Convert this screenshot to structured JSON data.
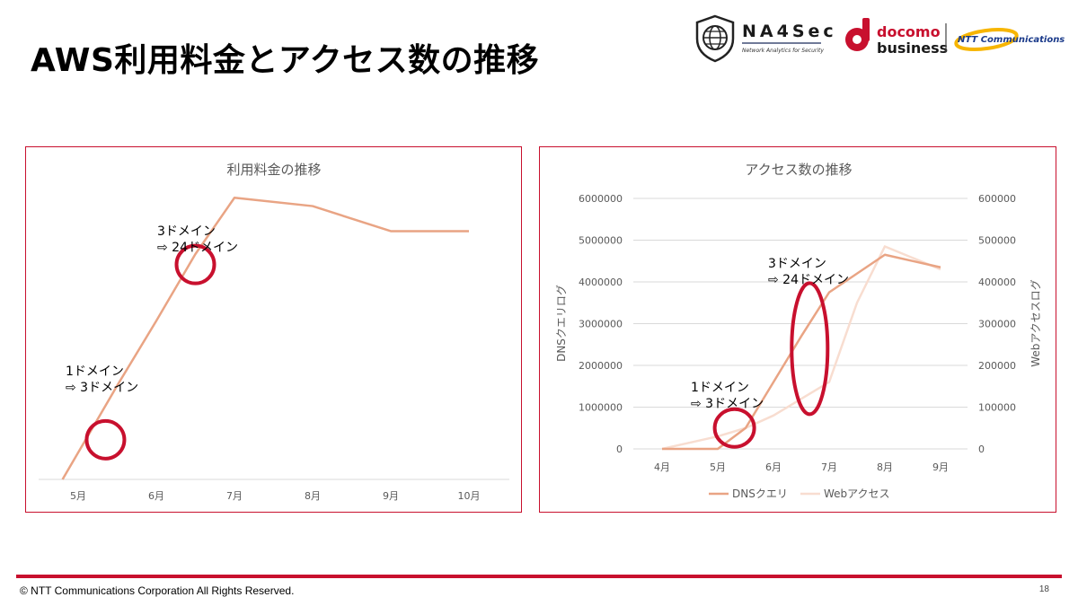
{
  "slide": {
    "title": "AWS利用料金とアクセス数の推移",
    "footer": "© NTT Communications Corporation All Rights Reserved.",
    "page_number": "18"
  },
  "logos": {
    "na4sec_name": "NA4Sec",
    "na4sec_tagline": "Network Analytics for Security",
    "docomo_line1": "docomo",
    "docomo_line2": "business",
    "ntt_name": "NTT Communications"
  },
  "colors": {
    "accent": "#c8102e",
    "series_dns": "#e9a484",
    "series_web": "#f8ddd0",
    "grid": "#d9d9d9",
    "axis_text": "#595959"
  },
  "chart_data": [
    {
      "type": "line",
      "title": "利用料金の推移",
      "categories": [
        "5月",
        "6月",
        "7月",
        "8月",
        "9月",
        "10月"
      ],
      "x": [
        4.8,
        5.5,
        6.0,
        6.5,
        7.0,
        8.0,
        9.0,
        10.0
      ],
      "values": [
        0.0,
        0.45,
        0.76,
        1.08,
        1.35,
        1.31,
        1.19,
        1.19
      ],
      "ylim": [
        0,
        1.42
      ],
      "grid": false,
      "annotations": [
        {
          "line1": "1ドメイン",
          "line2": "⇨ 3ドメイン",
          "circle_x": 5.35,
          "circle_y": 0.19
        },
        {
          "line1": "3ドメイン",
          "line2": "⇨ 24ドメイン",
          "circle_x": 6.5,
          "circle_y": 1.03
        }
      ]
    },
    {
      "type": "line",
      "title": "アクセス数の推移",
      "categories": [
        "4月",
        "5月",
        "6月",
        "7月",
        "8月",
        "9月"
      ],
      "ylabel": "DNSクエリログ",
      "y2label": "Webアクセスログ",
      "ylim": [
        0,
        6000000
      ],
      "y2lim": [
        0,
        600000
      ],
      "yticks": [
        "0",
        "1000000",
        "2000000",
        "3000000",
        "4000000",
        "5000000",
        "6000000"
      ],
      "y2ticks": [
        "0",
        "100000",
        "200000",
        "300000",
        "400000",
        "500000",
        "600000"
      ],
      "grid": true,
      "legend": "bottom",
      "series": [
        {
          "name": "DNSクエリ",
          "axis": "left",
          "x": [
            4,
            5,
            5.5,
            6,
            6.5,
            7,
            8,
            9
          ],
          "values": [
            0,
            0,
            500000,
            1600000,
            2700000,
            3750000,
            4650000,
            4350000
          ]
        },
        {
          "name": "Webアクセス",
          "axis": "right",
          "x": [
            4,
            5,
            5.5,
            6,
            6.5,
            7,
            7.5,
            8,
            9
          ],
          "values": [
            0,
            30000,
            50000,
            80000,
            120000,
            160000,
            350000,
            485000,
            430000
          ]
        }
      ],
      "annotations": [
        {
          "line1": "1ドメイン",
          "line2": "⇨ 3ドメイン",
          "circle_x": 5.3,
          "circle_y": 500000
        },
        {
          "line1": "3ドメイン",
          "line2": "⇨ 24ドメイン",
          "circle_x": 6.65,
          "circle_y": 2400000
        }
      ]
    }
  ]
}
